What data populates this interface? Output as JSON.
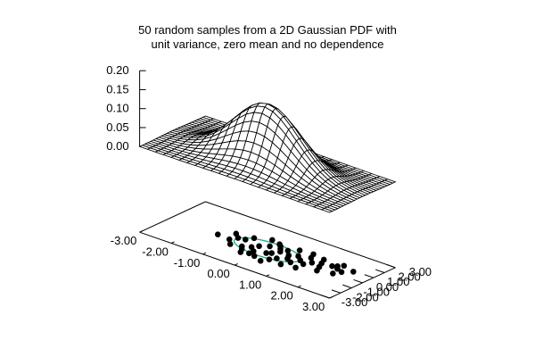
{
  "chart_data": {
    "type": "scatter",
    "title_lines": [
      "50 random samples from a 2D Gaussian PDF with",
      "unit variance, zero mean and no dependence"
    ],
    "surface": {
      "kind": "2D Gaussian PDF",
      "mean": [
        0,
        0
      ],
      "variance": 1,
      "grid_step": 0.25,
      "xlim": [
        -3,
        3
      ],
      "ylim": [
        -3,
        3
      ]
    },
    "zlim": [
      0,
      0.2
    ],
    "x_ticks": [
      "-3.00",
      "-2.00",
      "-1.00",
      "0.00",
      "1.00",
      "2.00",
      "3.00"
    ],
    "y_ticks": [
      "-3.00",
      "-2.00",
      "-1.00",
      "0.00",
      "1.00",
      "2.00",
      "3.00"
    ],
    "z_ticks": [
      "0.20",
      "0.15",
      "0.10",
      "0.05",
      "0.00"
    ],
    "contour_radius": 1,
    "points": [
      [
        -1.1,
        -0.3
      ],
      [
        -0.9,
        -0.8
      ],
      [
        -0.4,
        -1.3
      ],
      [
        -0.2,
        -1.1
      ],
      [
        0.0,
        -1.2
      ],
      [
        -1.0,
        0.2
      ],
      [
        -0.8,
        0.3
      ],
      [
        -0.6,
        -0.6
      ],
      [
        -0.4,
        -0.3
      ],
      [
        -0.3,
        0.1
      ],
      [
        0.1,
        -0.4
      ],
      [
        0.2,
        -0.2
      ],
      [
        -0.1,
        0.5
      ],
      [
        -0.2,
        -0.7
      ],
      [
        -0.5,
        -0.9
      ],
      [
        0.4,
        -1.0
      ],
      [
        0.5,
        -0.6
      ],
      [
        0.7,
        -0.2
      ],
      [
        0.9,
        -0.5
      ],
      [
        0.6,
        0.2
      ],
      [
        0.3,
        0.3
      ],
      [
        0.2,
        0.6
      ],
      [
        0.4,
        0.7
      ],
      [
        0.8,
        0.5
      ],
      [
        1.0,
        0.1
      ],
      [
        1.2,
        -0.2
      ],
      [
        1.3,
        0.3
      ],
      [
        1.1,
        0.8
      ],
      [
        1.5,
        0.6
      ],
      [
        1.6,
        0.1
      ],
      [
        1.8,
        0.7
      ],
      [
        2.0,
        0.6
      ],
      [
        1.9,
        0.9
      ],
      [
        1.4,
        1.1
      ],
      [
        2.2,
        0.4
      ],
      [
        -1.5,
        -0.2
      ],
      [
        -1.2,
        0.6
      ],
      [
        0.0,
        1.1
      ],
      [
        0.3,
        -1.5
      ],
      [
        -0.7,
        0.8
      ],
      [
        0.8,
        -1.1
      ],
      [
        1.7,
        -0.4
      ],
      [
        2.1,
        -0.1
      ],
      [
        0.6,
        1.2
      ],
      [
        0.1,
        0.9
      ],
      [
        1.0,
        1.3
      ],
      [
        2.4,
        0.9
      ],
      [
        -0.3,
        1.3
      ],
      [
        1.2,
        -0.9
      ],
      [
        2.0,
        1.2
      ]
    ]
  }
}
